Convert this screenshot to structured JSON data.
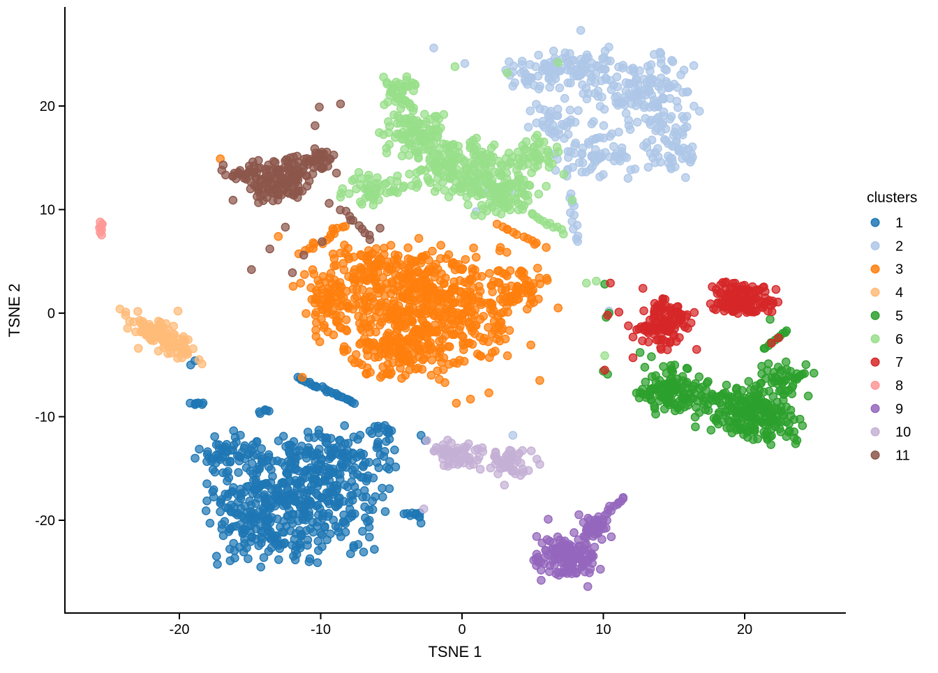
{
  "chart_data": {
    "type": "scatter",
    "title": "",
    "xlabel": "TSNE 1",
    "ylabel": "TSNE 2",
    "legend_title": "clusters",
    "xlim": [
      -28.1,
      27.2
    ],
    "ylim": [
      -29.0,
      29.6
    ],
    "x_ticks": {
      "values": [
        -20,
        -10,
        0,
        10,
        20
      ],
      "labels": [
        "-20",
        "-10",
        "0",
        "10",
        "20"
      ]
    },
    "y_ticks": {
      "values": [
        -20,
        -10,
        0,
        10,
        20
      ],
      "labels": [
        "-20",
        "-10",
        "0",
        "10",
        "20"
      ]
    },
    "grid": false,
    "legend_position": "right",
    "point_style": {
      "fill_opacity": 0.72,
      "stroke_opacity": 1.0
    },
    "series": [
      {
        "name": "1",
        "color": "#1f77b4",
        "blobs": [
          [
            -12,
            -17.5,
            7.2,
            6.3,
            0,
            430
          ],
          [
            -14,
            -21.5,
            4.5,
            3.2,
            0,
            80
          ],
          [
            -8.5,
            -13.5,
            4.5,
            2.8,
            0,
            80
          ],
          [
            -16.5,
            -13,
            2.5,
            2.2,
            0,
            35
          ],
          [
            -3.4,
            -19.6,
            0.8,
            0.8,
            0,
            10
          ],
          [
            -18.7,
            -8.7,
            0.6,
            0.5,
            0,
            8
          ],
          [
            -14,
            -9.4,
            0.6,
            0.4,
            0,
            6
          ],
          [
            -5.5,
            -11.5,
            1.5,
            1,
            0,
            15
          ]
        ],
        "streaks": [
          [
            -11.6,
            -6.3,
            -7.6,
            -8.7,
            26,
            0.18
          ]
        ],
        "points": [
          [
            -19.2,
            -5.0
          ],
          [
            -18.9,
            -4.6
          ],
          [
            -2.9,
            -11.8
          ],
          [
            -2.6,
            -12.3
          ]
        ]
      },
      {
        "name": "2",
        "color": "#aec7e8",
        "blobs": [
          [
            12.5,
            21.5,
            4.3,
            4.3,
            0,
            140
          ],
          [
            14.8,
            16,
            2.3,
            3.2,
            0,
            60
          ],
          [
            8,
            23.5,
            3.3,
            2.3,
            0,
            65
          ],
          [
            4.8,
            23.2,
            2,
            2,
            0,
            35
          ],
          [
            9.5,
            15.5,
            3.2,
            3.2,
            0,
            70
          ],
          [
            6.5,
            18.5,
            2,
            2.3,
            0,
            35
          ],
          [
            2.5,
            12,
            1.8,
            1.8,
            0,
            12
          ]
        ],
        "streaks": [
          [
            7.6,
            11.5,
            8.3,
            6.8,
            12,
            0.3
          ]
        ],
        "points": [
          [
            0.2,
            24.1
          ],
          [
            -2.0,
            25.6
          ],
          [
            8.4,
            27.3
          ],
          [
            16.4,
            23.9
          ],
          [
            3.6,
            -11.8
          ],
          [
            10.4,
            0.2
          ],
          [
            1.0,
            9.8
          ],
          [
            16.8,
            19.5
          ]
        ]
      },
      {
        "name": "3",
        "color": "#ff7f0e",
        "blobs": [
          [
            -3,
            0.5,
            8.2,
            6.2,
            0,
            560
          ],
          [
            -6,
            4.5,
            4,
            2.8,
            0,
            80
          ],
          [
            -4.5,
            -4.5,
            4.8,
            2.3,
            0,
            80
          ],
          [
            -9.7,
            1.5,
            2.3,
            3.2,
            0,
            45
          ],
          [
            4,
            2.5,
            2.3,
            2.3,
            0,
            50
          ]
        ],
        "streaks": [
          [
            -11.3,
            5.8,
            -8.2,
            8.6,
            16,
            0.35
          ],
          [
            2.5,
            8.6,
            5.8,
            6.4,
            12,
            0.3
          ]
        ],
        "points": [
          [
            -17.1,
            14.9
          ],
          [
            -11.3,
            -6.2
          ],
          [
            -0.4,
            -8.7
          ],
          [
            1.9,
            -7.7
          ],
          [
            0.6,
            -8.3
          ],
          [
            -13,
            7.4
          ],
          [
            5.5,
            -6.5
          ],
          [
            6.8,
            0.5
          ]
        ]
      },
      {
        "name": "4",
        "color": "#ffbb78",
        "blobs": [
          [
            -21.4,
            -2.1,
            3.2,
            1.3,
            -40,
            100
          ]
        ],
        "streaks": [],
        "points": [
          [
            -24.2,
            0.4
          ],
          [
            -23.8,
            0.1
          ],
          [
            -18.6,
            -4.5
          ],
          [
            -18.4,
            -4.9
          ],
          [
            -22.9,
            -3.4
          ],
          [
            -20.1,
            0.2
          ]
        ]
      },
      {
        "name": "5",
        "color": "#2ca02c",
        "blobs": [
          [
            15,
            -7.5,
            2.9,
            2.7,
            0,
            130
          ],
          [
            20.5,
            -9.6,
            4.3,
            2.9,
            -18,
            210
          ],
          [
            22.4,
            -6.3,
            2.3,
            1.9,
            0,
            45
          ]
        ],
        "streaks": [
          [
            21.4,
            -3.6,
            23.1,
            -1.6,
            10,
            0.3
          ]
        ],
        "points": [
          [
            10.1,
            2.8
          ],
          [
            10.4,
            0.0
          ],
          [
            10.2,
            -0.4
          ],
          [
            10.0,
            -5.6
          ],
          [
            10.3,
            -5.9
          ],
          [
            12.6,
            -3.8
          ],
          [
            24.9,
            -5.8
          ],
          [
            13.4,
            -4.2
          ],
          [
            21.8,
            -0.6
          ],
          [
            24.5,
            -8.0
          ]
        ]
      },
      {
        "name": "6",
        "color": "#98df8a",
        "blobs": [
          [
            0,
            14,
            5.3,
            3.3,
            0,
            190
          ],
          [
            -3.5,
            17.5,
            2.9,
            2.4,
            0,
            85
          ],
          [
            3,
            11.5,
            3.3,
            2.4,
            0,
            85
          ],
          [
            -4.3,
            21.3,
            1.5,
            1.8,
            0,
            38
          ],
          [
            -6.6,
            12,
            2.4,
            1.9,
            0,
            45
          ],
          [
            5.5,
            15.5,
            1.9,
            1.9,
            0,
            35
          ]
        ],
        "streaks": [
          [
            5,
            9.5,
            7.3,
            7.8,
            10,
            0.25
          ]
        ],
        "points": [
          [
            9.5,
            3.1
          ],
          [
            8.8,
            2.9
          ],
          [
            -8.6,
            11.2
          ],
          [
            7.2,
            13.4
          ],
          [
            7.8,
            10.9
          ],
          [
            3.2,
            23.2
          ],
          [
            -0.5,
            23.8
          ],
          [
            10.1,
            -4.1
          ],
          [
            6.8,
            24.2
          ]
        ]
      },
      {
        "name": "7",
        "color": "#d62728",
        "blobs": [
          [
            14.2,
            -1,
            2.1,
            2.5,
            -30,
            115
          ],
          [
            19.8,
            1.4,
            2.9,
            1.7,
            -12,
            135
          ]
        ],
        "streaks": [],
        "points": [
          [
            10.5,
            2.9
          ],
          [
            10.3,
            -0.2
          ],
          [
            10.1,
            -5.5
          ],
          [
            12.1,
            -4.3
          ],
          [
            22.4,
            -2.4
          ],
          [
            21.9,
            -2.9
          ],
          [
            16.6,
            -3.5
          ],
          [
            12.8,
            2.4
          ],
          [
            11.1,
            0.1
          ]
        ]
      },
      {
        "name": "8",
        "color": "#ff9896",
        "blobs": [],
        "streaks": [],
        "points": [
          [
            -25.6,
            8.8
          ],
          [
            -25.5,
            8.5
          ],
          [
            -25.65,
            8.25
          ],
          [
            -25.5,
            8.05
          ],
          [
            -25.6,
            7.8
          ],
          [
            -25.45,
            8.6
          ],
          [
            -25.55,
            8.3
          ],
          [
            -25.5,
            7.55
          ]
        ]
      },
      {
        "name": "9",
        "color": "#9467bd",
        "blobs": [
          [
            7.5,
            -23.5,
            2.7,
            2.1,
            0,
            140
          ],
          [
            9.4,
            -20.6,
            1.7,
            1.7,
            0,
            40
          ]
        ],
        "streaks": [
          [
            10.1,
            -19.4,
            11.2,
            -18.0,
            10,
            0.25
          ]
        ],
        "points": [
          [
            11.4,
            -17.8
          ],
          [
            5.6,
            -25.8
          ],
          [
            8.9,
            -26.4
          ],
          [
            6.1,
            -19.9
          ]
        ]
      },
      {
        "name": "10",
        "color": "#c5b0d5",
        "blobs": [
          [
            0,
            -13.8,
            1.7,
            1.4,
            0,
            40
          ],
          [
            3.2,
            -14.5,
            1.5,
            1.5,
            0,
            45
          ],
          [
            -1.3,
            -13.2,
            1.1,
            1.0,
            0,
            18
          ]
        ],
        "streaks": [],
        "points": [
          [
            4.9,
            -13.3
          ],
          [
            5.3,
            -14.1
          ],
          [
            4.7,
            -15.2
          ],
          [
            3.0,
            -16.6
          ],
          [
            -2.7,
            -18.9
          ],
          [
            -2.5,
            -12.3
          ],
          [
            5.5,
            -14.6
          ],
          [
            1.2,
            -13.9
          ],
          [
            0.8,
            -14.6
          ]
        ]
      },
      {
        "name": "11",
        "color": "#8c564b",
        "blobs": [
          [
            -12.8,
            12.8,
            2.7,
            2.2,
            15,
            120
          ],
          [
            -10.6,
            14.8,
            1.9,
            1.4,
            0,
            38
          ],
          [
            -15.4,
            13.6,
            1.4,
            1.4,
            0,
            22
          ]
        ],
        "streaks": [
          [
            -8.6,
            9.9,
            -6.3,
            7.3,
            10,
            0.3
          ]
        ],
        "points": [
          [
            -16.9,
            14.3
          ],
          [
            -17.0,
            13.8
          ],
          [
            -10.1,
            19.9
          ],
          [
            -12.5,
            8.3
          ],
          [
            -13.6,
            6.2
          ],
          [
            -14.9,
            4.2
          ],
          [
            -12.0,
            3.9
          ],
          [
            -11.2,
            5.6
          ],
          [
            -9.9,
            6.9
          ],
          [
            -8.6,
            20.2
          ],
          [
            -10.4,
            18.1
          ],
          [
            -5.8,
            8.2
          ],
          [
            -16.2,
            10.9
          ],
          [
            -9.4,
            10.6
          ]
        ]
      }
    ]
  }
}
